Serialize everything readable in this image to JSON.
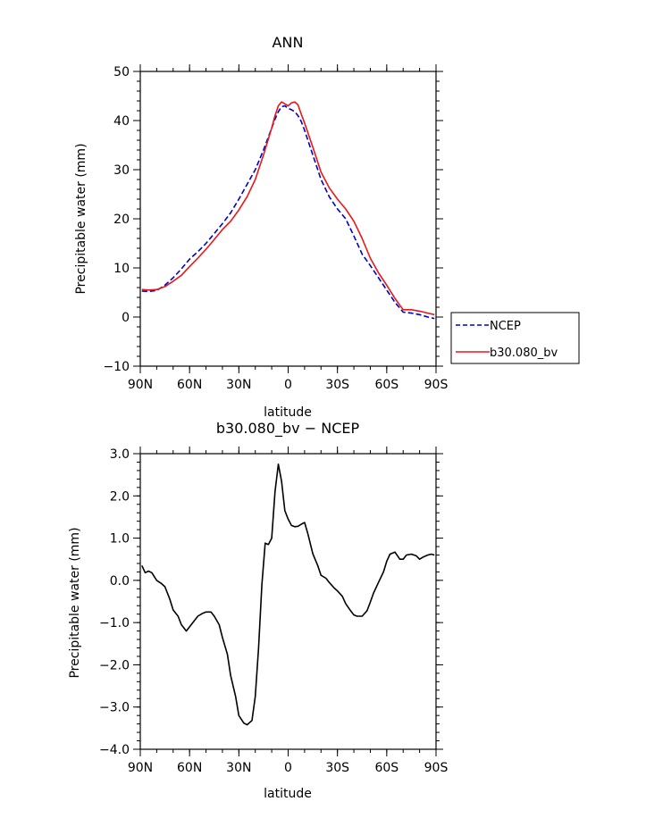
{
  "chart_data": [
    {
      "type": "line",
      "title": "ANN",
      "xlabel": "latitude",
      "ylabel": "Precipitable water (mm)",
      "xlim": [
        90,
        -90
      ],
      "ylim": [
        -10,
        50
      ],
      "yticks": [
        -10,
        0,
        10,
        20,
        30,
        40,
        50
      ],
      "ytick_labels": [
        "−10",
        "0",
        "10",
        "20",
        "30",
        "40",
        "50"
      ],
      "xticks": [
        90,
        60,
        30,
        0,
        -30,
        -60,
        -90
      ],
      "xtick_labels": [
        "90N",
        "60N",
        "30N",
        "0",
        "30S",
        "60S",
        "90S"
      ],
      "grid": false,
      "legend_position": "right",
      "series": [
        {
          "name": "NCEP",
          "color": "#0000cc",
          "style": "dashed",
          "x": [
            89,
            85,
            80,
            75,
            70,
            65,
            60,
            55,
            50,
            45,
            40,
            35,
            30,
            25,
            20,
            15,
            10,
            8,
            6,
            4,
            2,
            0,
            -2,
            -4,
            -6,
            -8,
            -10,
            -15,
            -20,
            -25,
            -30,
            -35,
            -40,
            -45,
            -50,
            -55,
            -60,
            -65,
            -70,
            -75,
            -80,
            -85,
            -89
          ],
          "y": [
            5.3,
            5.2,
            5.4,
            6.5,
            8.0,
            9.8,
            11.8,
            13.3,
            15.0,
            17.0,
            19.0,
            21.2,
            24.0,
            27.0,
            30.0,
            34.0,
            38.5,
            40.3,
            41.8,
            42.8,
            43.0,
            42.5,
            42.2,
            41.8,
            41.0,
            39.8,
            38.0,
            33.0,
            28.0,
            24.5,
            22.0,
            20.0,
            16.5,
            12.8,
            10.5,
            8.0,
            5.5,
            3.0,
            1.0,
            0.8,
            0.5,
            0.0,
            -0.3
          ]
        },
        {
          "name": "b30.080_bv",
          "color": "#e81818",
          "style": "solid",
          "x": [
            89,
            85,
            80,
            75,
            70,
            65,
            60,
            55,
            50,
            45,
            40,
            35,
            30,
            25,
            20,
            15,
            10,
            8,
            6,
            4,
            2,
            0,
            -2,
            -4,
            -6,
            -8,
            -10,
            -15,
            -20,
            -25,
            -30,
            -35,
            -40,
            -45,
            -50,
            -55,
            -60,
            -65,
            -70,
            -75,
            -80,
            -85,
            -89
          ],
          "y": [
            5.6,
            5.5,
            5.6,
            6.2,
            7.3,
            8.5,
            10.3,
            12.0,
            13.8,
            15.8,
            17.8,
            19.5,
            21.8,
            24.5,
            28.0,
            33.0,
            38.5,
            41.0,
            43.0,
            43.8,
            43.4,
            43.0,
            43.6,
            43.8,
            43.2,
            41.3,
            39.5,
            34.6,
            29.5,
            26.3,
            24.0,
            22.0,
            19.5,
            16.0,
            12.0,
            9.0,
            6.5,
            3.8,
            1.5,
            1.5,
            1.2,
            0.8,
            0.5
          ]
        }
      ]
    },
    {
      "type": "line",
      "title": "b30.080_bv  −  NCEP",
      "xlabel": "latitude",
      "ylabel": "Precipitable water (mm)",
      "xlim": [
        90,
        -90
      ],
      "ylim": [
        -4,
        3
      ],
      "yticks": [
        -4,
        -3,
        -2,
        -1,
        0,
        1,
        2,
        3
      ],
      "ytick_labels": [
        "−4.0",
        "−3.0",
        "−2.0",
        "−1.0",
        "0.0",
        "1.0",
        "2.0",
        "3.0"
      ],
      "xticks": [
        90,
        60,
        30,
        0,
        -30,
        -60,
        -90
      ],
      "xtick_labels": [
        "90N",
        "60N",
        "30N",
        "0",
        "30S",
        "60S",
        "90S"
      ],
      "grid": false,
      "series": [
        {
          "color": "#000000",
          "style": "solid",
          "x": [
            89,
            87,
            85,
            83,
            80,
            77,
            75,
            72,
            70,
            67,
            65,
            62,
            60,
            57,
            55,
            52,
            50,
            47,
            45,
            42,
            40,
            37,
            35,
            32,
            30,
            27,
            25,
            22,
            20,
            18,
            16,
            14,
            12,
            10,
            8,
            6,
            4,
            2,
            0,
            -2,
            -4,
            -6,
            -8,
            -10,
            -12,
            -15,
            -18,
            -20,
            -23,
            -25,
            -28,
            -30,
            -33,
            -35,
            -38,
            -40,
            -42,
            -45,
            -48,
            -50,
            -52,
            -55,
            -58,
            -60,
            -62,
            -65,
            -68,
            -70,
            -72,
            -75,
            -78,
            -80,
            -82,
            -85,
            -87,
            -89
          ],
          "y": [
            0.35,
            0.18,
            0.22,
            0.18,
            0.0,
            -0.08,
            -0.15,
            -0.45,
            -0.7,
            -0.85,
            -1.05,
            -1.2,
            -1.1,
            -0.95,
            -0.85,
            -0.78,
            -0.75,
            -0.75,
            -0.85,
            -1.05,
            -1.35,
            -1.75,
            -2.25,
            -2.75,
            -3.2,
            -3.38,
            -3.42,
            -3.32,
            -2.75,
            -1.6,
            -0.1,
            0.88,
            0.85,
            1.0,
            2.1,
            2.75,
            2.35,
            1.65,
            1.45,
            1.3,
            1.27,
            1.28,
            1.33,
            1.37,
            1.1,
            0.63,
            0.35,
            0.12,
            0.05,
            -0.05,
            -0.18,
            -0.25,
            -0.38,
            -0.55,
            -0.72,
            -0.82,
            -0.85,
            -0.85,
            -0.72,
            -0.52,
            -0.3,
            -0.05,
            0.2,
            0.45,
            0.62,
            0.67,
            0.5,
            0.5,
            0.6,
            0.62,
            0.58,
            0.5,
            0.55,
            0.6,
            0.62,
            0.6
          ]
        }
      ]
    }
  ]
}
